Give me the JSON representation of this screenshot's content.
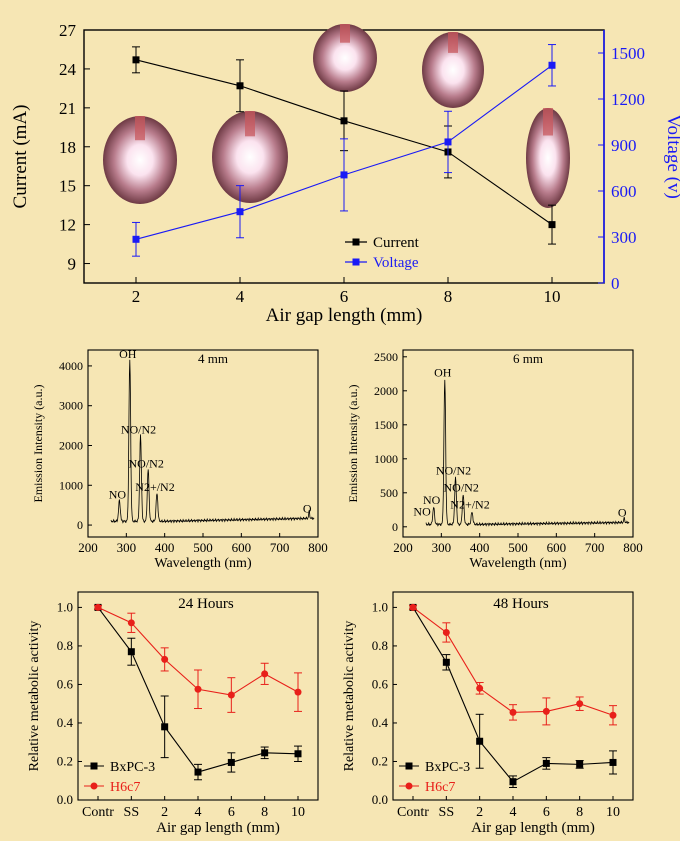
{
  "figure": {
    "background": "#f6e6b4"
  },
  "chart_data": [
    {
      "type": "line",
      "x": [
        2,
        4,
        6,
        8,
        10
      ],
      "xlim": [
        1,
        11
      ],
      "xticks": [
        2,
        4,
        6,
        8,
        10
      ],
      "xlabel": "Air gap length (mm)",
      "ylabel": "Current (mA)",
      "ylim": [
        7.5,
        27
      ],
      "yticks": [
        9,
        12,
        15,
        18,
        21,
        24,
        27
      ],
      "y2label": "Voltage (v)",
      "y2lim": [
        0,
        1650
      ],
      "y2ticks": [
        0,
        300,
        600,
        900,
        1200,
        1500
      ],
      "series": [
        {
          "name": "Current",
          "axis": "left",
          "color": "#000000",
          "marker": "square",
          "values": [
            24.7,
            22.7,
            20.0,
            17.6,
            12.0
          ],
          "errors": [
            1.0,
            2.0,
            2.3,
            2.0,
            1.5
          ]
        },
        {
          "name": "Voltage",
          "axis": "right",
          "color": "#1a1af5",
          "marker": "square",
          "values": [
            285,
            465,
            705,
            920,
            1420
          ],
          "errors": [
            110,
            170,
            235,
            200,
            135
          ]
        }
      ],
      "legend_position": "bottom-center",
      "inset_images": [
        "plasma-photo",
        "plasma-photo",
        "plasma-photo",
        "plasma-photo",
        "plasma-photo"
      ]
    },
    {
      "type": "line",
      "title": "4 mm",
      "xlabel": "Wavelength (nm)",
      "ylabel": "Emission Intensity (a.u.)",
      "xlim": [
        200,
        800
      ],
      "xticks": [
        200,
        300,
        400,
        500,
        600,
        700,
        800
      ],
      "ylim": [
        -300,
        4400
      ],
      "yticks": [
        0,
        1000,
        2000,
        3000,
        4000
      ],
      "peaks": [
        {
          "x": 282,
          "y": 520,
          "label": "NO"
        },
        {
          "x": 309,
          "y": 4050,
          "label": "OH"
        },
        {
          "x": 337,
          "y": 2150,
          "label": "NO/N2"
        },
        {
          "x": 357,
          "y": 1300,
          "label": "NO/N2"
        },
        {
          "x": 380,
          "y": 700,
          "label": "N2+/N2"
        },
        {
          "x": 777,
          "y": 170,
          "label": "O"
        }
      ]
    },
    {
      "type": "line",
      "title": "6 mm",
      "xlabel": "Wavelength (nm)",
      "ylabel": "Emission Intensity (a.u.)",
      "xlim": [
        200,
        800
      ],
      "xticks": [
        200,
        300,
        400,
        500,
        600,
        700,
        800
      ],
      "ylim": [
        -150,
        2600
      ],
      "yticks": [
        0,
        500,
        1000,
        1500,
        2000,
        2500
      ],
      "peaks": [
        {
          "x": 255,
          "y": 80,
          "label": "NO"
        },
        {
          "x": 280,
          "y": 250,
          "label": "NO"
        },
        {
          "x": 309,
          "y": 2120,
          "label": "OH"
        },
        {
          "x": 337,
          "y": 680,
          "label": "NO/N2"
        },
        {
          "x": 357,
          "y": 430,
          "label": "NO/N2"
        },
        {
          "x": 380,
          "y": 180,
          "label": "N2+/N2"
        },
        {
          "x": 777,
          "y": 60,
          "label": "O"
        }
      ]
    },
    {
      "type": "line",
      "title": "24 Hours",
      "xlabel": "Air gap length (mm)",
      "ylabel": "Relative metabolic activity",
      "categories": [
        "Contr",
        "SS",
        "2",
        "4",
        "6",
        "8",
        "10"
      ],
      "ylim": [
        0.0,
        1.08
      ],
      "yticks": [
        0.0,
        0.2,
        0.4,
        0.6,
        0.8,
        1.0
      ],
      "series": [
        {
          "name": "BxPC-3",
          "color": "#000000",
          "marker": "square",
          "values": [
            1.0,
            0.77,
            0.38,
            0.145,
            0.195,
            0.245,
            0.24
          ],
          "errors": [
            0.01,
            0.07,
            0.16,
            0.04,
            0.05,
            0.03,
            0.04
          ]
        },
        {
          "name": "H6c7",
          "color": "#e8201a",
          "marker": "circle",
          "values": [
            1.0,
            0.92,
            0.73,
            0.575,
            0.545,
            0.655,
            0.56
          ],
          "errors": [
            0.01,
            0.05,
            0.06,
            0.1,
            0.09,
            0.055,
            0.1
          ]
        }
      ],
      "legend_position": "bottom-left"
    },
    {
      "type": "line",
      "title": "48 Hours",
      "xlabel": "Air gap length (mm)",
      "ylabel": "Relative metabolic activity",
      "categories": [
        "Contr",
        "SS",
        "2",
        "4",
        "6",
        "8",
        "10"
      ],
      "ylim": [
        0.0,
        1.08
      ],
      "yticks": [
        0.0,
        0.2,
        0.4,
        0.6,
        0.8,
        1.0
      ],
      "series": [
        {
          "name": "BxPC-3",
          "color": "#000000",
          "marker": "square",
          "values": [
            1.0,
            0.715,
            0.305,
            0.095,
            0.19,
            0.185,
            0.195
          ],
          "errors": [
            0.01,
            0.04,
            0.14,
            0.03,
            0.03,
            0.02,
            0.06
          ]
        },
        {
          "name": "H6c7",
          "color": "#e8201a",
          "marker": "circle",
          "values": [
            1.0,
            0.87,
            0.58,
            0.455,
            0.46,
            0.5,
            0.44
          ],
          "errors": [
            0.01,
            0.05,
            0.03,
            0.04,
            0.07,
            0.035,
            0.05
          ]
        }
      ],
      "legend_position": "bottom-left"
    }
  ]
}
